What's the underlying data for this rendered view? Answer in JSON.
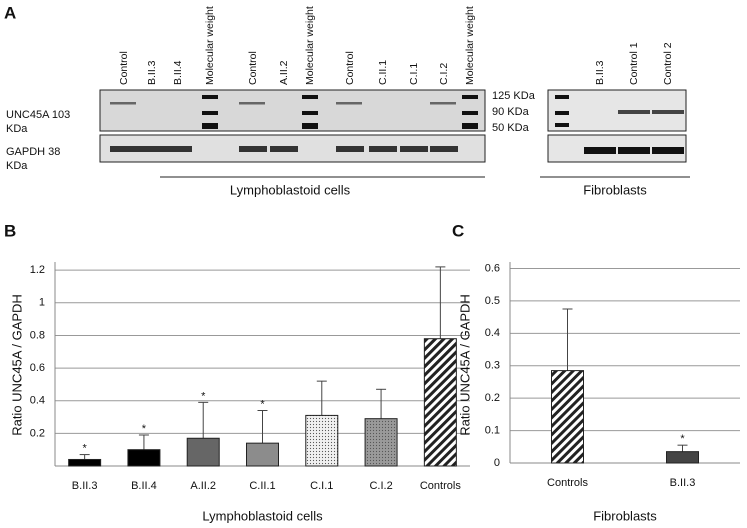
{
  "panel_a": {
    "label": "A",
    "lanes_left": [
      "Control",
      "B.II.3",
      "B.II.4",
      "Molecular weight",
      "Control",
      "A.II.2",
      "Molecular weight",
      "Control",
      "C.II.1",
      "C.I.1",
      "C.I.2",
      "Molecular weight"
    ],
    "lanes_right": [
      "B.II.3",
      "Control 1",
      "Control 2"
    ],
    "row_labels": [
      [
        "UNC45A 103",
        "KDa"
      ],
      [
        "GAPDH 38",
        "KDa"
      ]
    ],
    "markers": [
      "125 KDa",
      "90 KDa",
      "50 KDa"
    ],
    "group_labels": [
      "Lymphoblastoid cells",
      "Fibroblasts"
    ]
  },
  "chart_data": [
    {
      "type": "bar",
      "panel": "B",
      "ylabel": "Ratio UNC45A / GAPDH",
      "xlabel": "Lymphoblastoid cells",
      "categories": [
        "B.II.3",
        "B.II.4",
        "A.II.2",
        "C.II.1",
        "C.I.1",
        "C.I.2",
        "Controls"
      ],
      "values": [
        0.04,
        0.1,
        0.17,
        0.14,
        0.31,
        0.29,
        0.78
      ],
      "errors": [
        0.03,
        0.09,
        0.22,
        0.2,
        0.21,
        0.18,
        0.44
      ],
      "annotations": [
        "*",
        "*",
        "*",
        "*",
        null,
        null,
        null
      ],
      "colors": [
        "#000000",
        "#000000",
        "#666666",
        "#8c8c8c",
        "#f0f0f0",
        "#9a9a9a",
        "#ffffff"
      ],
      "patterns": [
        null,
        null,
        null,
        null,
        "dots",
        "dots",
        "hatch"
      ],
      "ylim": [
        0,
        1.25
      ],
      "yticks": [
        0.2,
        0.4,
        0.6,
        0.8,
        1,
        1.2
      ],
      "grid": true
    },
    {
      "type": "bar",
      "panel": "C",
      "ylabel": "Ratio UNC45A / GAPDH",
      "xlabel": "Fibroblasts",
      "categories": [
        "Controls",
        "B.II.3"
      ],
      "values": [
        0.285,
        0.035
      ],
      "errors": [
        0.19,
        0.02
      ],
      "annotations": [
        null,
        "*"
      ],
      "colors": [
        "#ffffff",
        "#444444"
      ],
      "patterns": [
        "hatch",
        null
      ],
      "ylim": [
        0,
        0.62
      ],
      "yticks": [
        0,
        0.1,
        0.2,
        0.3,
        0.4,
        0.5,
        0.6
      ],
      "grid": true
    }
  ]
}
